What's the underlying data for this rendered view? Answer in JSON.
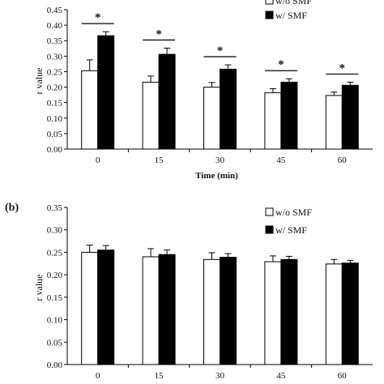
{
  "chart_data": [
    {
      "type": "bar",
      "panel_label": "",
      "categories": [
        "0",
        "15",
        "30",
        "45",
        "60"
      ],
      "series": [
        {
          "name": "w/o SMF",
          "values": [
            0.253,
            0.216,
            0.2,
            0.182,
            0.173
          ],
          "errors": [
            0.035,
            0.02,
            0.015,
            0.013,
            0.011
          ],
          "color": "#ffffff"
        },
        {
          "name": "w/ SMF",
          "values": [
            0.366,
            0.306,
            0.258,
            0.216,
            0.206
          ],
          "errors": [
            0.013,
            0.02,
            0.014,
            0.011,
            0.01
          ],
          "color": "#000000"
        }
      ],
      "significance": [
        "*",
        "*",
        "*",
        "*",
        "*"
      ],
      "xlabel": "Time (min)",
      "ylabel": "r value",
      "ylim": [
        0,
        0.45
      ],
      "yticks": [
        "0.00",
        "0.05",
        "0.10",
        "0.15",
        "0.20",
        "0.25",
        "0.30",
        "0.35",
        "0.40",
        "0.45"
      ],
      "legend_position": "top-right",
      "grid": false
    },
    {
      "type": "bar",
      "panel_label": "(b)",
      "categories": [
        "0",
        "15",
        "30",
        "45",
        "60"
      ],
      "series": [
        {
          "name": "w/o SMF",
          "values": [
            0.25,
            0.24,
            0.234,
            0.229,
            0.224
          ],
          "errors": [
            0.016,
            0.018,
            0.015,
            0.013,
            0.01
          ],
          "color": "#ffffff"
        },
        {
          "name": "w/ SMF",
          "values": [
            0.255,
            0.245,
            0.239,
            0.234,
            0.226
          ],
          "errors": [
            0.01,
            0.01,
            0.008,
            0.007,
            0.006
          ],
          "color": "#000000"
        }
      ],
      "significance": [
        "",
        "",
        "",
        "",
        ""
      ],
      "xlabel": "",
      "ylabel": "r value",
      "ylim": [
        0,
        0.35
      ],
      "yticks": [
        "0.00",
        "0.05",
        "0.10",
        "0.15",
        "0.20",
        "0.25",
        "0.30",
        "0.35"
      ],
      "legend_position": "top-right",
      "grid": false
    }
  ]
}
